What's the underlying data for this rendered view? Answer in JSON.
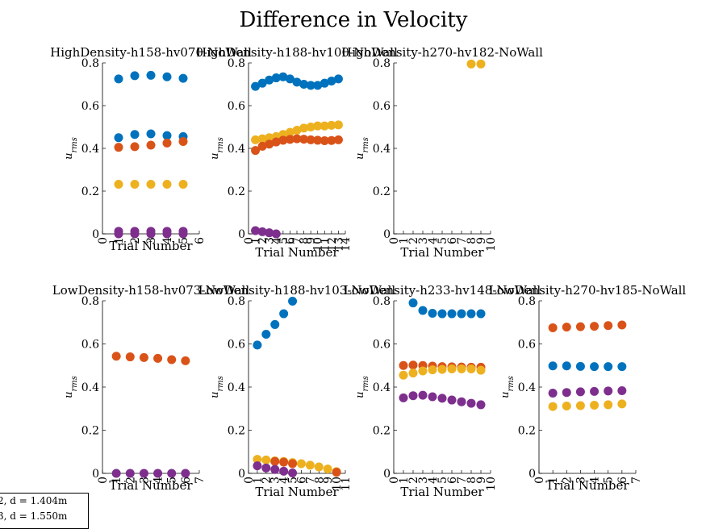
{
  "figure": {
    "title": "Difference in Velocity"
  },
  "colors": [
    "#0072BD",
    "#D95319",
    "#EDB120",
    "#7E2F8E"
  ],
  "legend": {
    "entries": [
      "2, d = 1.404m",
      "3, d = 1.550m"
    ]
  },
  "chart_data": [
    {
      "type": "scatter",
      "title": "HighDensity-h158-hv070-NoWall",
      "xlabel": "Trial Number",
      "ylabel": "u_rms",
      "xlim": [
        0,
        6
      ],
      "ylim": [
        0,
        0.8
      ],
      "xticks": [
        0,
        1,
        2,
        3,
        4,
        5,
        6
      ],
      "yticks": [
        0,
        0.2,
        0.4,
        0.6,
        0.8
      ],
      "series": [
        {
          "color": "#0072BD",
          "x": [
            1,
            2,
            3,
            4,
            5
          ],
          "y": [
            0.725,
            0.74,
            0.742,
            0.735,
            0.728
          ]
        },
        {
          "color": "#0072BD",
          "x": [
            1,
            2,
            3,
            4,
            5
          ],
          "y": [
            0.45,
            0.465,
            0.468,
            0.46,
            0.455
          ]
        },
        {
          "color": "#D95319",
          "x": [
            1,
            2,
            3,
            4,
            5
          ],
          "y": [
            0.405,
            0.408,
            0.415,
            0.425,
            0.432
          ]
        },
        {
          "color": "#EDB120",
          "x": [
            1,
            2,
            3,
            4,
            5
          ],
          "y": [
            0.232,
            0.232,
            0.232,
            0.232,
            0.232
          ]
        },
        {
          "color": "#7E2F8E",
          "x": [
            1,
            2,
            3,
            4,
            5
          ],
          "y": [
            0.012,
            0.012,
            0.012,
            0.012,
            0.012
          ]
        },
        {
          "color": "#7E2F8E",
          "x": [
            1,
            2,
            3,
            4,
            5
          ],
          "y": [
            0.0,
            0.0,
            0.0,
            0.0,
            0.0
          ]
        }
      ]
    },
    {
      "type": "scatter",
      "title": "HighDensity-h188-hv100-NoWall",
      "xlabel": "Trial Number",
      "ylabel": "u_rms",
      "xlim": [
        0,
        14
      ],
      "ylim": [
        0,
        0.8
      ],
      "xticks": [
        0,
        1,
        2,
        3,
        4,
        5,
        6,
        7,
        8,
        9,
        10,
        11,
        12,
        13,
        14
      ],
      "yticks": [
        0,
        0.2,
        0.4,
        0.6,
        0.8
      ],
      "series": [
        {
          "color": "#0072BD",
          "x": [
            1,
            2,
            3,
            4,
            5,
            6,
            7,
            8,
            9,
            10,
            11,
            12,
            13
          ],
          "y": [
            0.69,
            0.705,
            0.72,
            0.73,
            0.735,
            0.725,
            0.71,
            0.7,
            0.695,
            0.695,
            0.705,
            0.715,
            0.725
          ]
        },
        {
          "color": "#EDB120",
          "x": [
            1,
            2,
            3,
            4,
            5,
            6,
            7,
            8,
            9,
            10,
            11,
            12,
            13
          ],
          "y": [
            0.44,
            0.445,
            0.45,
            0.455,
            0.465,
            0.475,
            0.485,
            0.495,
            0.5,
            0.505,
            0.505,
            0.508,
            0.51
          ]
        },
        {
          "color": "#D95319",
          "x": [
            1,
            2,
            3,
            4,
            5,
            6,
            7,
            8,
            9,
            10,
            11,
            12,
            13
          ],
          "y": [
            0.39,
            0.41,
            0.42,
            0.43,
            0.438,
            0.442,
            0.445,
            0.443,
            0.44,
            0.438,
            0.436,
            0.437,
            0.44
          ]
        },
        {
          "color": "#7E2F8E",
          "x": [
            1,
            2,
            3,
            4
          ],
          "y": [
            0.015,
            0.01,
            0.005,
            0.0
          ]
        }
      ]
    },
    {
      "type": "scatter",
      "title": "HighDensity-h270-hv182-NoWall",
      "xlabel": "Trial Number",
      "ylabel": "u_rms",
      "xlim": [
        0,
        10
      ],
      "ylim": [
        0,
        0.8
      ],
      "xticks": [
        0,
        1,
        2,
        3,
        4,
        5,
        6,
        7,
        8,
        9,
        10
      ],
      "yticks": [
        0,
        0.2,
        0.4,
        0.6,
        0.8
      ],
      "series": [
        {
          "color": "#EDB120",
          "x": [
            8,
            9
          ],
          "y": [
            0.795,
            0.795
          ]
        }
      ]
    },
    {
      "type": "scatter",
      "title": "LowDensity-h158-hv073-NoWall",
      "xlabel": "Trial Number",
      "ylabel": "u_rms",
      "xlim": [
        0,
        7
      ],
      "ylim": [
        0,
        0.8
      ],
      "xticks": [
        0,
        1,
        2,
        3,
        4,
        5,
        6,
        7
      ],
      "yticks": [
        0,
        0.2,
        0.4,
        0.6,
        0.8
      ],
      "series": [
        {
          "color": "#D95319",
          "x": [
            1,
            2,
            3,
            4,
            5,
            6
          ],
          "y": [
            0.543,
            0.54,
            0.537,
            0.533,
            0.527,
            0.522
          ]
        },
        {
          "color": "#7E2F8E",
          "x": [
            1,
            2,
            3,
            4,
            5,
            6
          ],
          "y": [
            0.0,
            0.0,
            0.0,
            0.0,
            0.0,
            0.0
          ]
        }
      ]
    },
    {
      "type": "scatter",
      "title": "LowDensity-h188-hv103-NoWall",
      "xlabel": "Trial Number",
      "ylabel": "u_rms",
      "xlim": [
        0,
        11
      ],
      "ylim": [
        0,
        0.8
      ],
      "xticks": [
        0,
        1,
        2,
        3,
        4,
        5,
        6,
        7,
        8,
        9,
        10,
        11
      ],
      "yticks": [
        0,
        0.2,
        0.4,
        0.6,
        0.8
      ],
      "series": [
        {
          "color": "#0072BD",
          "x": [
            1,
            2,
            3,
            4,
            5
          ],
          "y": [
            0.595,
            0.645,
            0.69,
            0.74,
            0.798
          ]
        },
        {
          "color": "#EDB120",
          "x": [
            1,
            2,
            3,
            4,
            5,
            6,
            7,
            8,
            9,
            10
          ],
          "y": [
            0.065,
            0.062,
            0.058,
            0.055,
            0.05,
            0.045,
            0.038,
            0.03,
            0.02,
            0.008
          ]
        },
        {
          "color": "#D95319",
          "x": [
            3,
            4,
            5,
            10
          ],
          "y": [
            0.055,
            0.052,
            0.045,
            0.005
          ]
        },
        {
          "color": "#7E2F8E",
          "x": [
            1,
            2,
            3,
            4,
            5
          ],
          "y": [
            0.035,
            0.025,
            0.018,
            0.01,
            0.002
          ]
        }
      ]
    },
    {
      "type": "scatter",
      "title": "LowDensity-h233-hv148-NoWall",
      "xlabel": "Trial Number",
      "ylabel": "u_rms",
      "xlim": [
        0,
        10
      ],
      "ylim": [
        0,
        0.8
      ],
      "xticks": [
        0,
        1,
        2,
        3,
        4,
        5,
        6,
        7,
        8,
        9,
        10
      ],
      "yticks": [
        0,
        0.2,
        0.4,
        0.6,
        0.8
      ],
      "series": [
        {
          "color": "#0072BD",
          "x": [
            2,
            3,
            4,
            5,
            6,
            7,
            8,
            9
          ],
          "y": [
            0.79,
            0.755,
            0.742,
            0.74,
            0.74,
            0.74,
            0.74,
            0.74
          ]
        },
        {
          "color": "#D95319",
          "x": [
            1,
            2,
            3,
            4,
            5,
            6,
            7,
            8,
            9
          ],
          "y": [
            0.5,
            0.502,
            0.5,
            0.497,
            0.495,
            0.494,
            0.493,
            0.492,
            0.492
          ]
        },
        {
          "color": "#EDB120",
          "x": [
            1,
            2,
            3,
            4,
            5,
            6,
            7,
            8,
            9
          ],
          "y": [
            0.455,
            0.465,
            0.475,
            0.48,
            0.482,
            0.484,
            0.484,
            0.484,
            0.478
          ]
        },
        {
          "color": "#7E2F8E",
          "x": [
            1,
            2,
            3,
            4,
            5,
            6,
            7,
            8,
            9
          ],
          "y": [
            0.35,
            0.36,
            0.362,
            0.355,
            0.348,
            0.34,
            0.332,
            0.325,
            0.318
          ]
        }
      ]
    },
    {
      "type": "scatter",
      "title": "LowDensity-h270-hv185-NoWall",
      "xlabel": "Trial Number",
      "ylabel": "u_rms",
      "xlim": [
        0,
        7
      ],
      "ylim": [
        0,
        0.8
      ],
      "xticks": [
        0,
        1,
        2,
        3,
        4,
        5,
        6,
        7
      ],
      "yticks": [
        0,
        0.2,
        0.4,
        0.6,
        0.8
      ],
      "series": [
        {
          "color": "#D95319",
          "x": [
            1,
            2,
            3,
            4,
            5,
            6
          ],
          "y": [
            0.675,
            0.678,
            0.68,
            0.682,
            0.685,
            0.688
          ]
        },
        {
          "color": "#0072BD",
          "x": [
            1,
            2,
            3,
            4,
            5,
            6
          ],
          "y": [
            0.498,
            0.498,
            0.496,
            0.495,
            0.495,
            0.495
          ]
        },
        {
          "color": "#7E2F8E",
          "x": [
            1,
            2,
            3,
            4,
            5,
            6
          ],
          "y": [
            0.372,
            0.375,
            0.378,
            0.38,
            0.382,
            0.383
          ]
        },
        {
          "color": "#EDB120",
          "x": [
            1,
            2,
            3,
            4,
            5,
            6
          ],
          "y": [
            0.31,
            0.312,
            0.314,
            0.316,
            0.318,
            0.322
          ]
        }
      ]
    }
  ]
}
